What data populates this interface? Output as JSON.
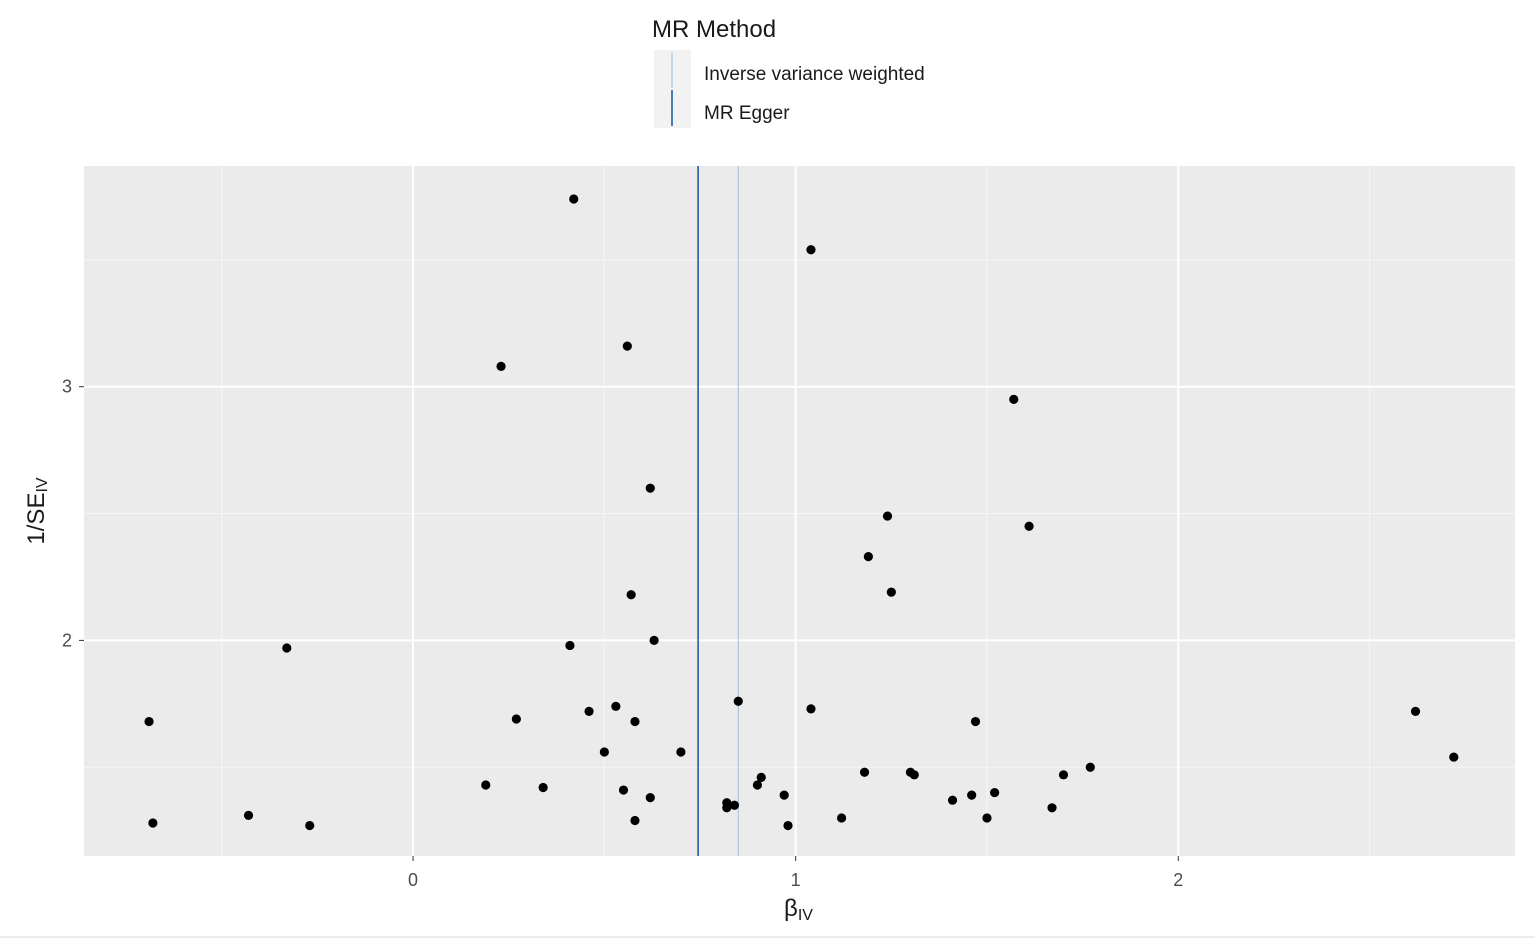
{
  "chart_data": {
    "type": "scatter",
    "xlabel": "β",
    "xlabel_subscript": "IV",
    "ylabel_prefix": "1/SE",
    "ylabel_subscript": "IV",
    "xlim": [
      -0.86,
      2.88
    ],
    "ylim": [
      1.15,
      3.87
    ],
    "x_ticks": [
      0,
      1,
      2
    ],
    "y_ticks": [
      2,
      3
    ],
    "x_tick_labels": [
      "0",
      "1",
      "2"
    ],
    "y_tick_labels": [
      "2",
      "3"
    ],
    "grid": true,
    "panel_background": "#ebebeb",
    "grid_color": "#ffffff",
    "point_color": "#000000",
    "legend": {
      "title": "MR Method",
      "position": "top",
      "entries": [
        {
          "label": "Inverse variance weighted",
          "color": "#a6c8e8"
        },
        {
          "label": "MR Egger",
          "color": "#1f5fa6"
        }
      ]
    },
    "vertical_lines": [
      {
        "name": "MR Egger",
        "x": 0.745,
        "color": "#1f5fa6"
      },
      {
        "name": "Inverse variance weighted",
        "x": 0.85,
        "color": "#a6c8e8"
      }
    ],
    "points": [
      {
        "x": 0.42,
        "y": 3.74
      },
      {
        "x": 1.04,
        "y": 3.54
      },
      {
        "x": 0.56,
        "y": 3.16
      },
      {
        "x": 0.23,
        "y": 3.08
      },
      {
        "x": 1.57,
        "y": 2.95
      },
      {
        "x": 0.62,
        "y": 2.6
      },
      {
        "x": 1.24,
        "y": 2.49
      },
      {
        "x": 1.61,
        "y": 2.45
      },
      {
        "x": 1.19,
        "y": 2.33
      },
      {
        "x": 0.57,
        "y": 2.18
      },
      {
        "x": 1.25,
        "y": 2.19
      },
      {
        "x": 0.63,
        "y": 2.0
      },
      {
        "x": 0.41,
        "y": 1.98
      },
      {
        "x": -0.33,
        "y": 1.97
      },
      {
        "x": -0.69,
        "y": 1.68
      },
      {
        "x": 0.27,
        "y": 1.69
      },
      {
        "x": 0.46,
        "y": 1.72
      },
      {
        "x": 0.53,
        "y": 1.74
      },
      {
        "x": 0.58,
        "y": 1.68
      },
      {
        "x": 0.85,
        "y": 1.76
      },
      {
        "x": 1.04,
        "y": 1.73
      },
      {
        "x": 1.47,
        "y": 1.68
      },
      {
        "x": 2.62,
        "y": 1.72
      },
      {
        "x": 2.72,
        "y": 1.54
      },
      {
        "x": 0.5,
        "y": 1.56
      },
      {
        "x": 0.7,
        "y": 1.56
      },
      {
        "x": 0.19,
        "y": 1.43
      },
      {
        "x": 0.34,
        "y": 1.42
      },
      {
        "x": 0.55,
        "y": 1.41
      },
      {
        "x": 0.62,
        "y": 1.38
      },
      {
        "x": 0.58,
        "y": 1.29
      },
      {
        "x": -0.43,
        "y": 1.31
      },
      {
        "x": -0.68,
        "y": 1.28
      },
      {
        "x": -0.27,
        "y": 1.27
      },
      {
        "x": 0.82,
        "y": 1.36
      },
      {
        "x": 0.82,
        "y": 1.34
      },
      {
        "x": 0.84,
        "y": 1.35
      },
      {
        "x": 0.9,
        "y": 1.43
      },
      {
        "x": 0.91,
        "y": 1.46
      },
      {
        "x": 0.97,
        "y": 1.39
      },
      {
        "x": 0.98,
        "y": 1.27
      },
      {
        "x": 1.12,
        "y": 1.3
      },
      {
        "x": 1.18,
        "y": 1.48
      },
      {
        "x": 1.3,
        "y": 1.48
      },
      {
        "x": 1.31,
        "y": 1.47
      },
      {
        "x": 1.41,
        "y": 1.37
      },
      {
        "x": 1.46,
        "y": 1.39
      },
      {
        "x": 1.5,
        "y": 1.3
      },
      {
        "x": 1.52,
        "y": 1.4
      },
      {
        "x": 1.67,
        "y": 1.34
      },
      {
        "x": 1.7,
        "y": 1.47
      },
      {
        "x": 1.77,
        "y": 1.5
      }
    ]
  }
}
